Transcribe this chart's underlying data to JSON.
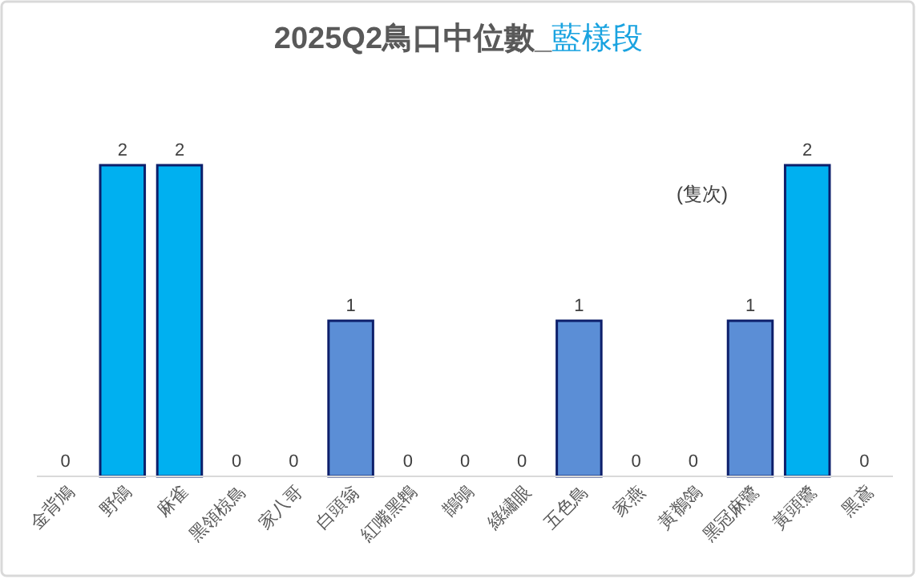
{
  "chart_data": {
    "type": "bar",
    "title": "2025Q2鳥口中位數_藍樣段",
    "categories": [
      "金背鳩",
      "野鴿",
      "麻雀",
      "黑領椋鳥",
      "家八哥",
      "白頭翁",
      "紅嘴黑鵯",
      "鵲鴝",
      "綠繡眼",
      "五色鳥",
      "家燕",
      "黃鶺鴒",
      "黑冠麻鷺",
      "黃頭鷺",
      "黑鳶"
    ],
    "values": [
      0,
      2,
      2,
      0,
      0,
      1,
      0,
      0,
      0,
      1,
      0,
      0,
      1,
      2,
      0
    ],
    "colors": [
      null,
      "#00b0f0",
      "#00b0f0",
      null,
      null,
      "#5b8ed6",
      null,
      null,
      null,
      "#5b8ed6",
      null,
      null,
      "#5b8ed6",
      "#00b0f0",
      null
    ],
    "data_labels": true,
    "annotations": [
      "(隻次)"
    ]
  }
}
